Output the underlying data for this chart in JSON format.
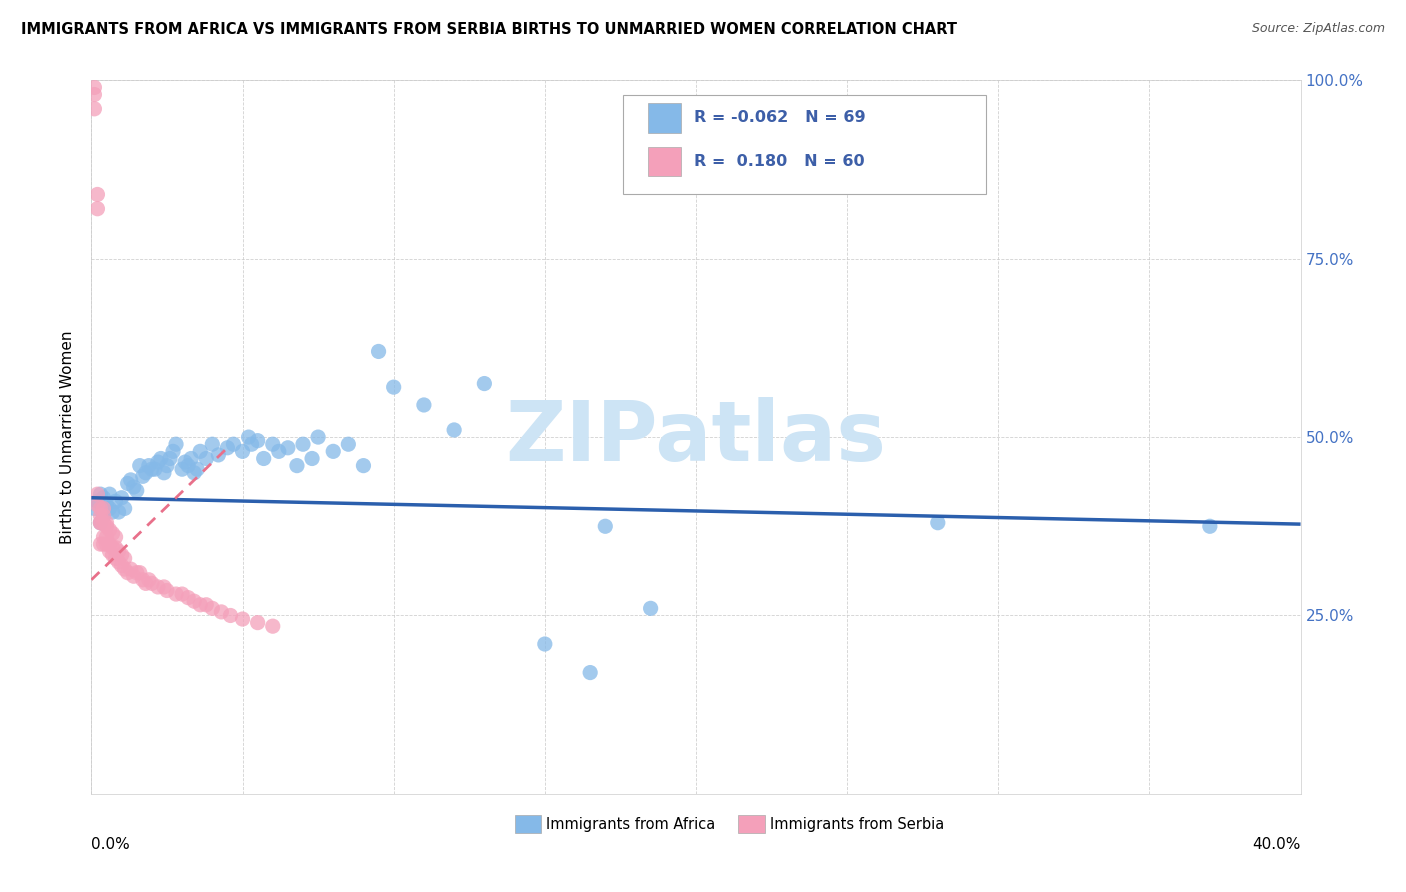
{
  "title": "IMMIGRANTS FROM AFRICA VS IMMIGRANTS FROM SERBIA BIRTHS TO UNMARRIED WOMEN CORRELATION CHART",
  "source": "Source: ZipAtlas.com",
  "ylabel": "Births to Unmarried Women",
  "legend_africa": {
    "R": "-0.062",
    "N": "69",
    "label": "Immigrants from Africa"
  },
  "legend_serbia": {
    "R": "0.180",
    "N": "60",
    "label": "Immigrants from Serbia"
  },
  "color_africa": "#85b9e8",
  "color_serbia": "#f4a0ba",
  "trendline_africa_color": "#2b5fad",
  "trendline_serbia_color": "#e8708a",
  "watermark": "ZIPatlas",
  "watermark_color": "#cde4f5",
  "africa_x": [
    0.001,
    0.002,
    0.003,
    0.003,
    0.004,
    0.004,
    0.005,
    0.006,
    0.006,
    0.007,
    0.008,
    0.009,
    0.01,
    0.011,
    0.012,
    0.013,
    0.014,
    0.015,
    0.016,
    0.017,
    0.018,
    0.019,
    0.02,
    0.021,
    0.022,
    0.023,
    0.024,
    0.025,
    0.026,
    0.027,
    0.028,
    0.03,
    0.031,
    0.032,
    0.033,
    0.034,
    0.035,
    0.036,
    0.038,
    0.04,
    0.042,
    0.045,
    0.047,
    0.05,
    0.052,
    0.053,
    0.055,
    0.057,
    0.06,
    0.062,
    0.065,
    0.068,
    0.07,
    0.073,
    0.075,
    0.08,
    0.085,
    0.09,
    0.095,
    0.1,
    0.11,
    0.12,
    0.13,
    0.15,
    0.165,
    0.17,
    0.185,
    0.28,
    0.37
  ],
  "africa_y": [
    0.4,
    0.41,
    0.38,
    0.42,
    0.39,
    0.415,
    0.405,
    0.42,
    0.4,
    0.395,
    0.41,
    0.395,
    0.415,
    0.4,
    0.435,
    0.44,
    0.43,
    0.425,
    0.46,
    0.445,
    0.45,
    0.46,
    0.455,
    0.455,
    0.465,
    0.47,
    0.45,
    0.46,
    0.47,
    0.48,
    0.49,
    0.455,
    0.465,
    0.46,
    0.47,
    0.45,
    0.455,
    0.48,
    0.47,
    0.49,
    0.475,
    0.485,
    0.49,
    0.48,
    0.5,
    0.49,
    0.495,
    0.47,
    0.49,
    0.48,
    0.485,
    0.46,
    0.49,
    0.47,
    0.5,
    0.48,
    0.49,
    0.46,
    0.62,
    0.57,
    0.545,
    0.51,
    0.575,
    0.21,
    0.17,
    0.375,
    0.26,
    0.38,
    0.375
  ],
  "serbia_x": [
    0.001,
    0.001,
    0.001,
    0.002,
    0.002,
    0.002,
    0.002,
    0.003,
    0.003,
    0.003,
    0.003,
    0.003,
    0.004,
    0.004,
    0.004,
    0.004,
    0.004,
    0.005,
    0.005,
    0.005,
    0.005,
    0.006,
    0.006,
    0.006,
    0.007,
    0.007,
    0.007,
    0.008,
    0.008,
    0.008,
    0.009,
    0.009,
    0.01,
    0.01,
    0.011,
    0.011,
    0.012,
    0.013,
    0.014,
    0.015,
    0.016,
    0.017,
    0.018,
    0.019,
    0.02,
    0.022,
    0.024,
    0.025,
    0.028,
    0.03,
    0.032,
    0.034,
    0.036,
    0.038,
    0.04,
    0.043,
    0.046,
    0.05,
    0.055,
    0.06
  ],
  "serbia_y": [
    0.96,
    0.98,
    0.99,
    0.82,
    0.84,
    0.42,
    0.405,
    0.35,
    0.38,
    0.39,
    0.4,
    0.38,
    0.35,
    0.36,
    0.38,
    0.39,
    0.4,
    0.35,
    0.36,
    0.375,
    0.38,
    0.34,
    0.35,
    0.37,
    0.335,
    0.345,
    0.365,
    0.33,
    0.345,
    0.36,
    0.325,
    0.34,
    0.32,
    0.335,
    0.315,
    0.33,
    0.31,
    0.315,
    0.305,
    0.31,
    0.31,
    0.3,
    0.295,
    0.3,
    0.295,
    0.29,
    0.29,
    0.285,
    0.28,
    0.28,
    0.275,
    0.27,
    0.265,
    0.265,
    0.26,
    0.255,
    0.25,
    0.245,
    0.24,
    0.235
  ],
  "xlim": [
    0.0,
    0.4
  ],
  "ylim": [
    0.0,
    1.0
  ],
  "yticks": [
    0.0,
    0.25,
    0.5,
    0.75,
    1.0
  ],
  "ytick_labels_right": [
    "",
    "25.0%",
    "50.0%",
    "75.0%",
    "100.0%"
  ],
  "xticks": [
    0.0,
    0.05,
    0.1,
    0.15,
    0.2,
    0.25,
    0.3,
    0.35,
    0.4
  ]
}
